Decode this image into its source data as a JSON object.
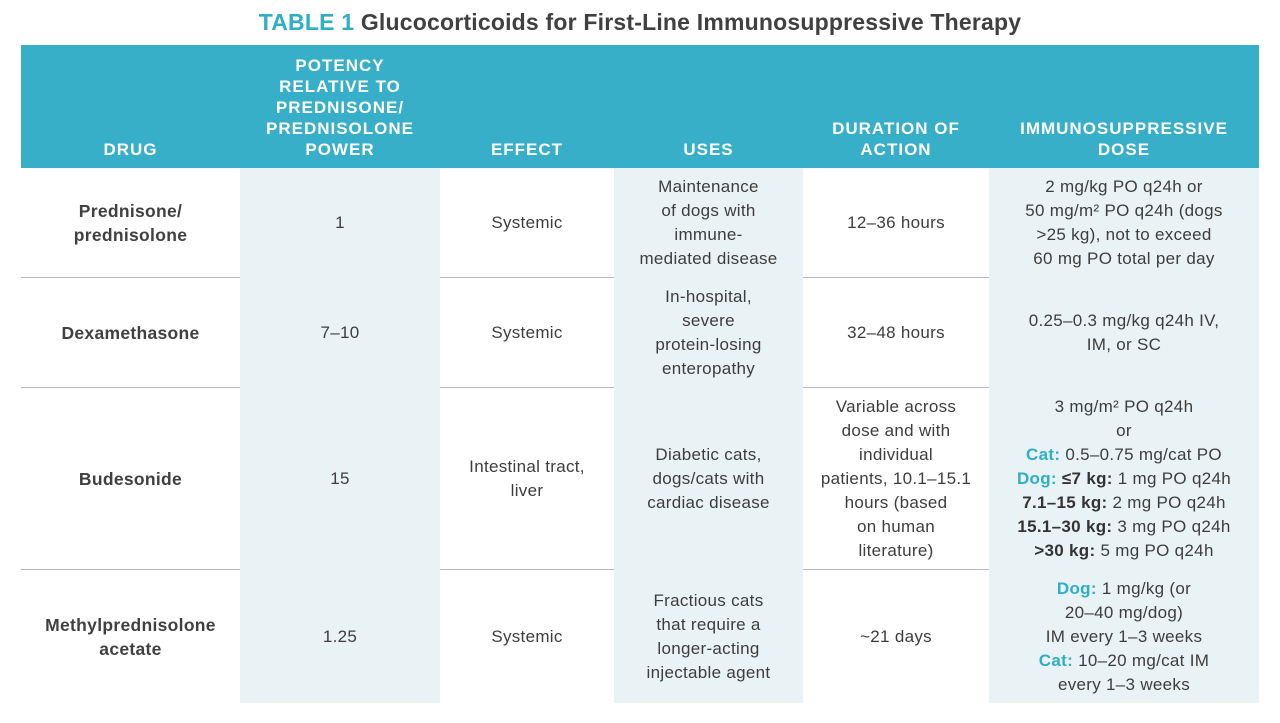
{
  "title": {
    "label": "TABLE 1",
    "text": "Glucocorticoids for First-Line Immunosuppressive Therapy"
  },
  "headers": [
    "DRUG",
    "POTENCY\nRELATIVE TO\nPREDNISONE/\nPREDNISOLONE\nPOWER",
    "EFFECT",
    "USES",
    "DURATION OF\nACTION",
    "IMMUNOSUPPRESSIVE\nDOSE"
  ],
  "rows": [
    {
      "drug": "Prednisone/\nprednisolone",
      "potency": "1",
      "effect": "Systemic",
      "uses": "Maintenance\nof dogs with\nimmune-\nmediated disease",
      "duration": "12–36 hours",
      "dose": [
        {
          "prefix": "",
          "text": "2 mg/kg PO q24h or"
        },
        {
          "prefix": "",
          "text": "50 mg/m² PO q24h (dogs"
        },
        {
          "prefix": "",
          "text": ">25 kg), not to exceed"
        },
        {
          "prefix": "",
          "text": "60 mg PO total per day"
        }
      ]
    },
    {
      "drug": "Dexamethasone",
      "potency": "7–10",
      "effect": "Systemic",
      "uses": "In-hospital,\nsevere\nprotein-losing\nenteropathy",
      "duration": "32–48 hours",
      "dose": [
        {
          "prefix": "",
          "text": "0.25–0.3 mg/kg q24h IV,"
        },
        {
          "prefix": "",
          "text": "IM, or SC"
        }
      ]
    },
    {
      "drug": "Budesonide",
      "potency": "15",
      "effect": "Intestinal tract,\nliver",
      "uses": "Diabetic cats,\ndogs/cats with\ncardiac disease",
      "duration": "Variable across\ndose and with\nindividual\npatients, 10.1–15.1\nhours (based\non human\nliterature)",
      "dose": [
        {
          "prefix": "",
          "text": "3 mg/m² PO q24h"
        },
        {
          "prefix": "",
          "text": "or"
        },
        {
          "prefix": "Cat:",
          "style": "teal",
          "text": " 0.5–0.75 mg/cat PO"
        },
        {
          "prefix": "Dog:",
          "style": "teal",
          "bold2": " ≤7 kg:",
          "text": " 1 mg PO q24h"
        },
        {
          "prefix": "7.1–15 kg:",
          "style": "bold",
          "text": " 2 mg PO q24h"
        },
        {
          "prefix": "15.1–30 kg:",
          "style": "bold",
          "text": " 3 mg PO q24h"
        },
        {
          "prefix": ">30 kg:",
          "style": "bold",
          "text": " 5 mg PO q24h"
        }
      ]
    },
    {
      "drug": "Methylprednisolone\nacetate",
      "potency": "1.25",
      "effect": "Systemic",
      "uses": "Fractious cats\nthat require a\nlonger-acting\ninjectable agent",
      "duration": "~21 days",
      "dose": [
        {
          "prefix": "Dog:",
          "style": "teal",
          "text": " 1 mg/kg (or"
        },
        {
          "prefix": "",
          "text": "20–40 mg/dog)"
        },
        {
          "prefix": "",
          "text": "IM every 1–3 weeks"
        },
        {
          "prefix": "Cat:",
          "style": "teal",
          "text": " 10–20 mg/cat IM"
        },
        {
          "prefix": "",
          "text": "every 1–3 weeks"
        }
      ]
    }
  ],
  "colors": {
    "header": "#37afc8",
    "accent": "#2eaec7",
    "shade": "#e9f3f5"
  }
}
